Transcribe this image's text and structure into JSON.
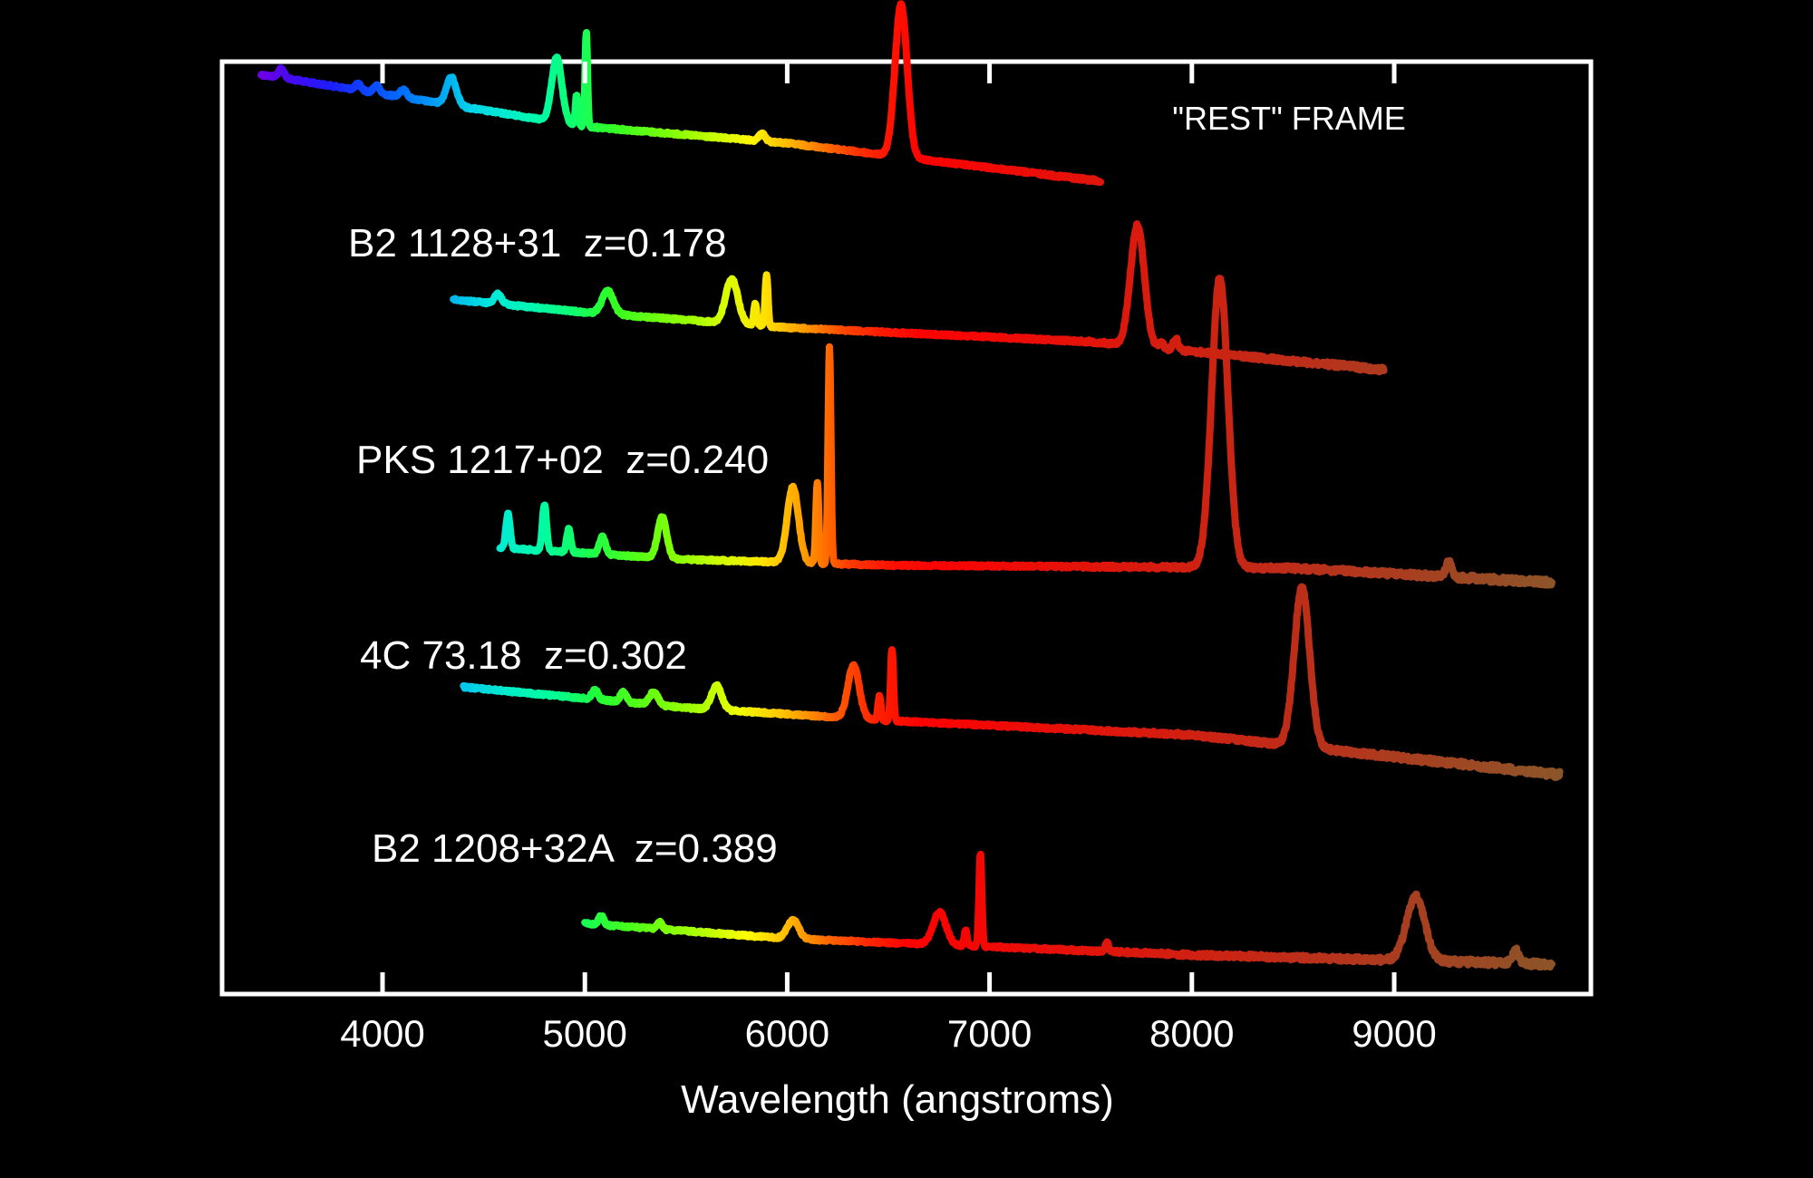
{
  "chart_data": {
    "type": "line",
    "xlabel": "Wavelength (angstroms)",
    "ylabel": "",
    "xlim": [
      3250,
      9800
    ],
    "xticks": [
      4000,
      5000,
      6000,
      7000,
      8000,
      9000
    ],
    "grid": false,
    "frame_label": "\"REST\" FRAME",
    "series": [
      {
        "name": "",
        "z": 0,
        "range": [
          3400,
          7550
        ],
        "baseline": [
          [
            3400,
            0.7
          ],
          [
            5000,
            0.36
          ],
          [
            6000,
            0.25
          ],
          [
            7550,
            0.0
          ]
        ],
        "lines": [
          [
            3500,
            0.06,
            15
          ],
          [
            3880,
            0.04,
            15
          ],
          [
            3970,
            0.05,
            15
          ],
          [
            4102,
            0.05,
            18
          ],
          [
            4340,
            0.18,
            25
          ],
          [
            4861,
            0.42,
            25
          ],
          [
            4959,
            0.2,
            6
          ],
          [
            5007,
            0.62,
            6
          ],
          [
            5876,
            0.05,
            15
          ],
          [
            6563,
            1.0,
            30
          ]
        ]
      },
      {
        "name": "B2 1128+31  z=0.178",
        "z": 0.178,
        "range": [
          4350,
          8950
        ],
        "baseline": [
          [
            4350,
            0.55
          ],
          [
            5000,
            0.45
          ],
          [
            6000,
            0.33
          ],
          [
            7500,
            0.22
          ],
          [
            8950,
            0.0
          ]
        ],
        "lines": [
          [
            4570,
            0.08,
            18
          ],
          [
            5113,
            0.18,
            28
          ],
          [
            5726,
            0.35,
            30
          ],
          [
            5842,
            0.17,
            7
          ],
          [
            5898,
            0.4,
            7
          ],
          [
            7731,
            0.95,
            34
          ],
          [
            7850,
            0.05,
            10
          ],
          [
            7920,
            0.09,
            12
          ]
        ]
      },
      {
        "name": "PKS 1217+02  z=0.240",
        "z": 0.24,
        "range": [
          4580,
          9780
        ],
        "baseline": [
          [
            4580,
            0.12
          ],
          [
            5500,
            0.08
          ],
          [
            6500,
            0.06
          ],
          [
            8500,
            0.05
          ],
          [
            9780,
            0.0
          ]
        ],
        "lines": [
          [
            4620,
            0.12,
            10
          ],
          [
            4800,
            0.16,
            10
          ],
          [
            4920,
            0.08,
            10
          ],
          [
            5087,
            0.06,
            15
          ],
          [
            5382,
            0.14,
            22
          ],
          [
            6028,
            0.26,
            28
          ],
          [
            6149,
            0.28,
            7
          ],
          [
            6209,
            0.75,
            7
          ],
          [
            8138,
            1.0,
            40
          ],
          [
            9270,
            0.05,
            15
          ]
        ]
      },
      {
        "name": "4C 73.18  z=0.302",
        "z": 0.302,
        "range": [
          4400,
          9820
        ],
        "baseline": [
          [
            4400,
            0.55
          ],
          [
            5500,
            0.42
          ],
          [
            6500,
            0.34
          ],
          [
            8000,
            0.25
          ],
          [
            9820,
            0.0
          ]
        ],
        "lines": [
          [
            5050,
            0.06,
            15
          ],
          [
            5190,
            0.06,
            15
          ],
          [
            5341,
            0.08,
            20
          ],
          [
            5651,
            0.15,
            25
          ],
          [
            6328,
            0.33,
            28
          ],
          [
            6456,
            0.15,
            7
          ],
          [
            6518,
            0.45,
            7
          ],
          [
            8544,
            1.0,
            38
          ]
        ]
      },
      {
        "name": "B2 1208+32A  z=0.389",
        "z": 0.389,
        "range": [
          5000,
          9780
        ],
        "baseline": [
          [
            5000,
            0.35
          ],
          [
            6000,
            0.22
          ],
          [
            7000,
            0.15
          ],
          [
            8000,
            0.08
          ],
          [
            9780,
            0.0
          ]
        ],
        "lines": [
          [
            5080,
            0.08,
            12
          ],
          [
            5370,
            0.06,
            12
          ],
          [
            6029,
            0.16,
            28
          ],
          [
            6753,
            0.28,
            32
          ],
          [
            6882,
            0.14,
            7
          ],
          [
            6955,
            0.8,
            7
          ],
          [
            7580,
            0.08,
            8
          ],
          [
            9106,
            0.55,
            45
          ],
          [
            9600,
            0.12,
            15
          ]
        ]
      }
    ]
  }
}
